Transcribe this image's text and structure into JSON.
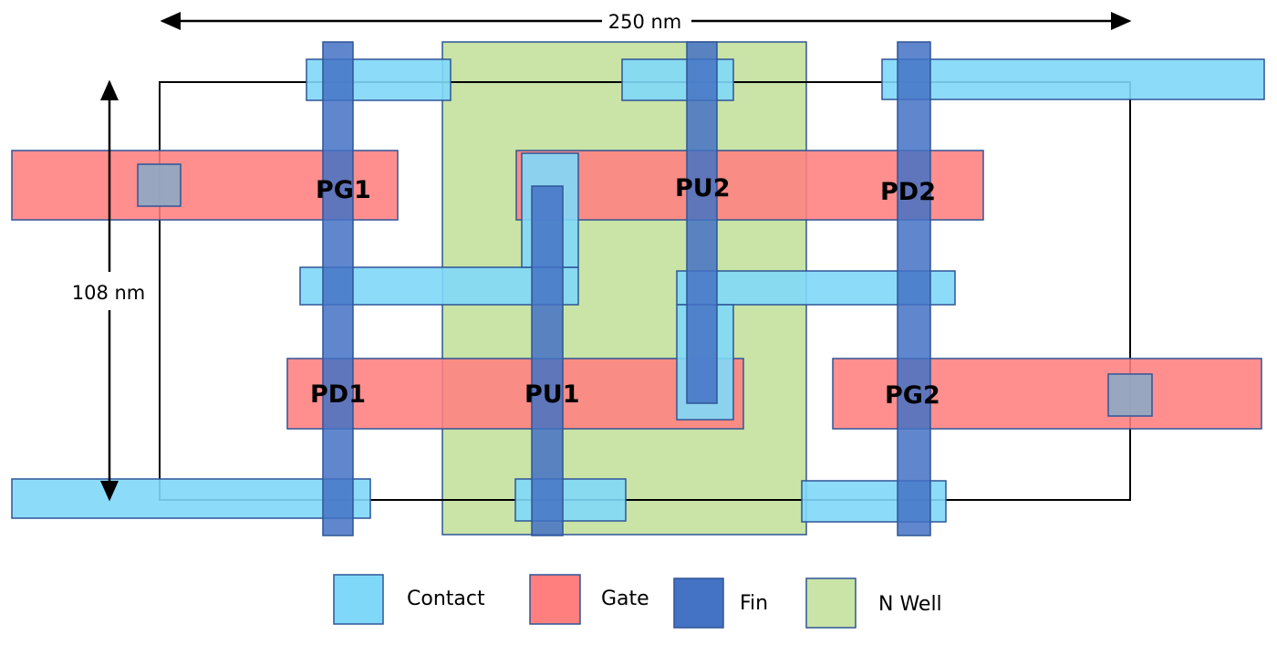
{
  "dimensions": {
    "width_label": "250 nm",
    "height_label": "108 nm"
  },
  "transistors": {
    "pg1": "PG1",
    "pu2": "PU2",
    "pd2": "PD2",
    "pd1": "PD1",
    "pu1": "PU1",
    "pg2": "PG2"
  },
  "legend": {
    "contact": "Contact",
    "gate": "Gate",
    "fin": "Fin",
    "nwell": "N Well"
  },
  "colors": {
    "contact": "#7fd8f8",
    "gate": "#ff7f7f",
    "fin": "#4472c4",
    "nwell": "#c9e4a6",
    "outline": "#2f5597"
  }
}
